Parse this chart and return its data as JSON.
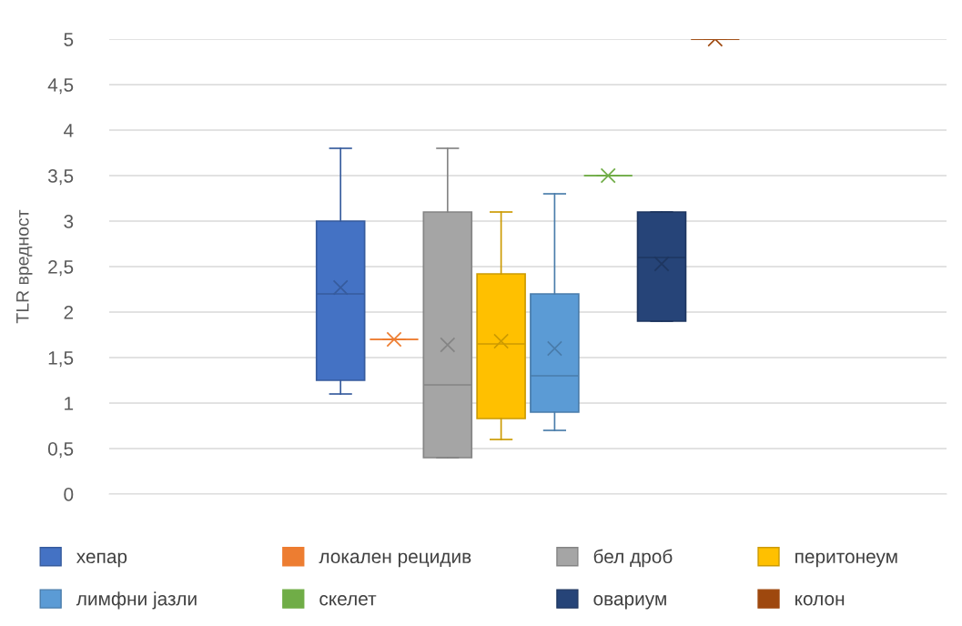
{
  "chart_data": {
    "type": "box",
    "ylabel": "TLR вредност",
    "categories": [
      null
    ],
    "ylim": [
      0,
      5
    ],
    "yticks": [
      0,
      {
        "value": 0.5,
        "label": "0,5"
      },
      1,
      {
        "value": 1.5,
        "label": "1,5"
      },
      2,
      {
        "value": 2.5,
        "label": "2,5"
      },
      3,
      {
        "value": 3.5,
        "label": "3,5"
      },
      4,
      {
        "value": 4.5,
        "label": "4,5"
      },
      5
    ],
    "grid": "y",
    "legend": "bottom",
    "marker": "cross",
    "series": [
      {
        "name": "хепар",
        "color": "#4472c4",
        "boxes": [
          {
            "low": 1.1,
            "q1": 1.25,
            "median": 2.2,
            "q3": 3.0,
            "high": 3.8,
            "mean": 2.27
          }
        ]
      },
      {
        "name": "локален рецидив",
        "color": "#ed7d31",
        "boxes": [
          {
            "low": 1.7,
            "q1": 1.7,
            "median": 1.7,
            "q3": 1.7,
            "high": 1.7,
            "mean": 1.7
          }
        ]
      },
      {
        "name": "бел дроб",
        "color": "#a5a5a5",
        "boxes": [
          {
            "low": 0.4,
            "q1": 0.4,
            "median": 1.2,
            "q3": 3.1,
            "high": 3.8,
            "mean": 1.64
          }
        ]
      },
      {
        "name": "перитонеум",
        "color": "#ffc000",
        "boxes": [
          {
            "low": 0.6,
            "q1": 0.83,
            "median": 1.65,
            "q3": 2.42,
            "high": 3.1,
            "mean": 1.68
          }
        ]
      },
      {
        "name": "лимфни јазли",
        "color": "#5b9bd5",
        "boxes": [
          {
            "low": 0.7,
            "q1": 0.9,
            "median": 1.3,
            "q3": 2.2,
            "high": 3.3,
            "mean": 1.6
          }
        ]
      },
      {
        "name": "скелет",
        "color": "#70ad47",
        "boxes": [
          {
            "low": 3.5,
            "q1": 3.5,
            "median": 3.5,
            "q3": 3.5,
            "high": 3.5,
            "mean": 3.5
          }
        ]
      },
      {
        "name": "овариум",
        "color": "#264478",
        "boxes": [
          {
            "low": 1.9,
            "q1": 1.9,
            "median": 2.6,
            "q3": 3.1,
            "high": 3.1,
            "mean": 2.53
          }
        ]
      },
      {
        "name": "колон",
        "color": "#9e480e",
        "boxes": [
          {
            "low": 5.0,
            "q1": 5.0,
            "median": 5.0,
            "q3": 5.0,
            "high": 5.0,
            "mean": 5.0
          }
        ]
      }
    ]
  }
}
